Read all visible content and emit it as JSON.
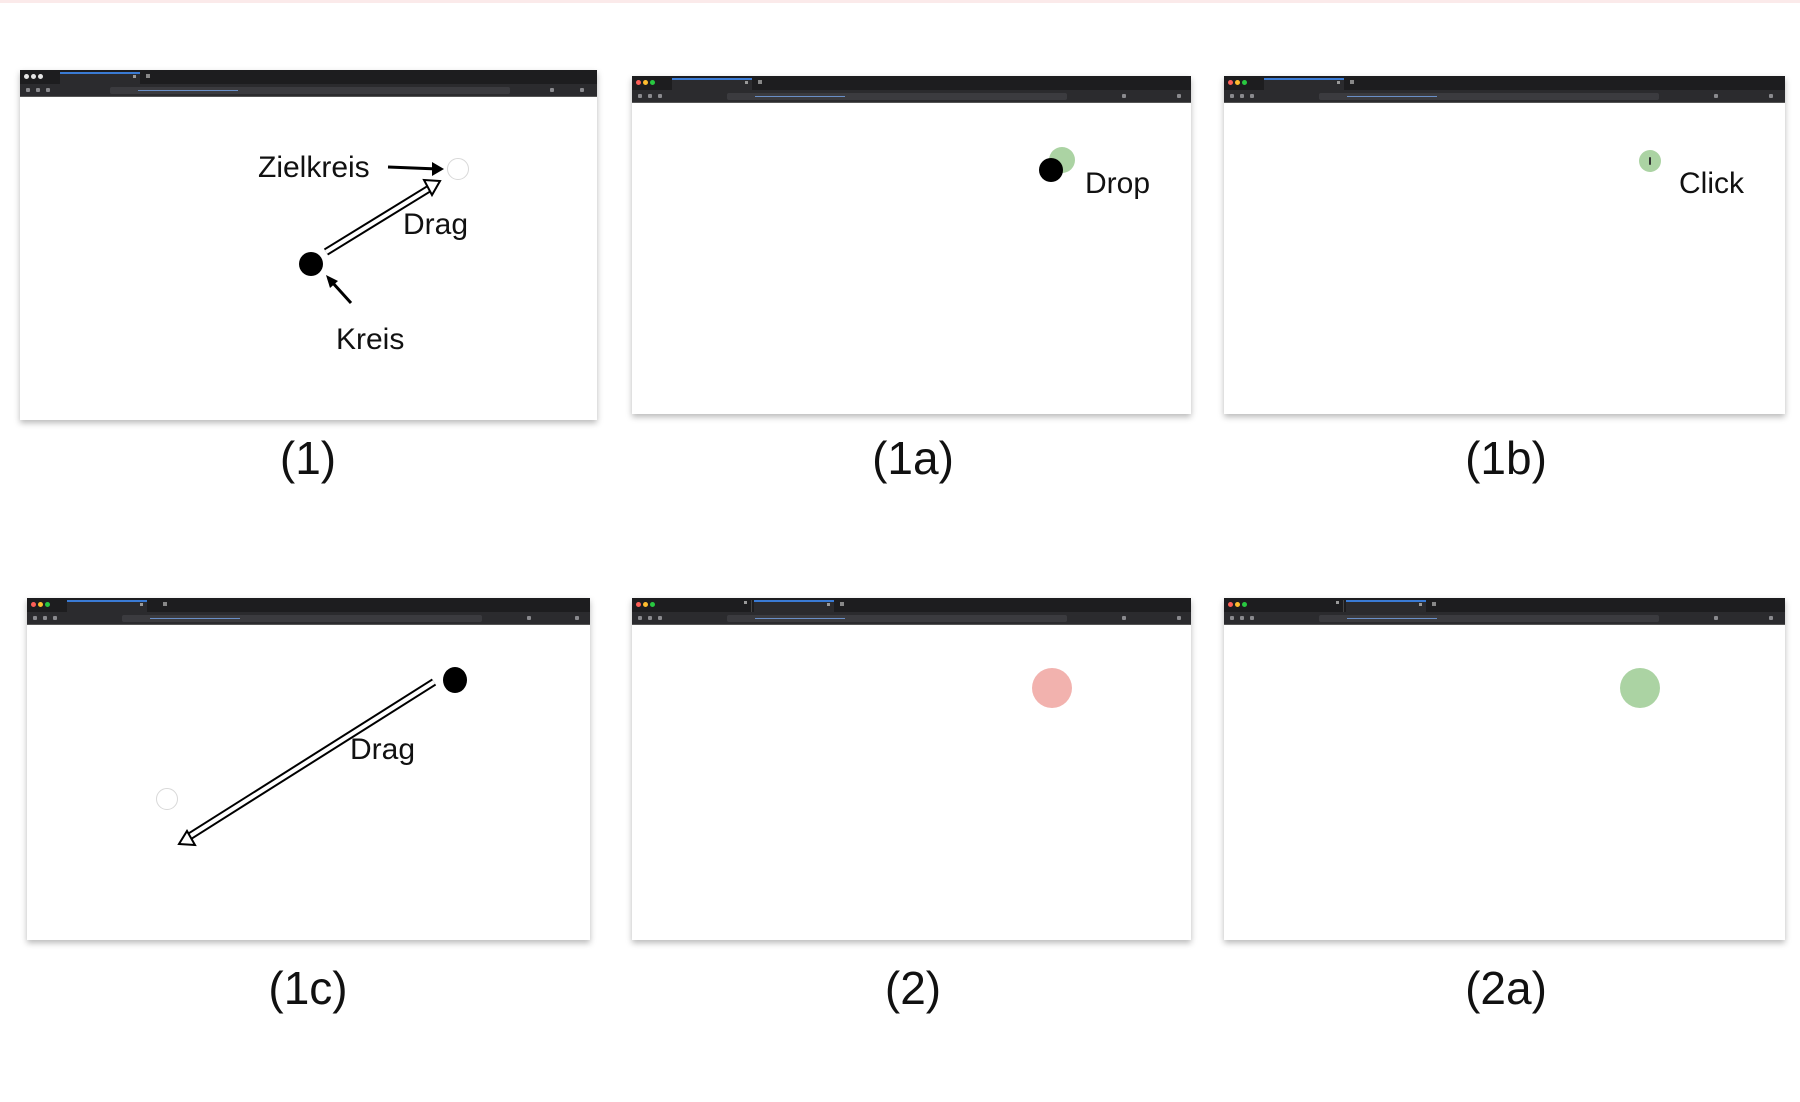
{
  "panels": {
    "p1": {
      "caption": "(1)",
      "labels": {
        "target": "Zielkreis",
        "drag": "Drag",
        "circle": "Kreis"
      }
    },
    "p1a": {
      "caption": "(1a)",
      "labels": {
        "drop": "Drop"
      }
    },
    "p1b": {
      "caption": "(1b)",
      "labels": {
        "click": "Click"
      }
    },
    "p1c": {
      "caption": "(1c)",
      "labels": {
        "drag": "Drag"
      }
    },
    "p2": {
      "caption": "(2)"
    },
    "p2a": {
      "caption": "(2a)"
    }
  },
  "icons": {
    "traffic_lights": [
      "close-dot-icon",
      "minimize-dot-icon",
      "zoom-dot-icon"
    ],
    "arrow": "arrow-icon",
    "drag_path": "drag-arrow-icon"
  },
  "colors": {
    "titlebar": "#1d1d1f",
    "toolbar": "#2b2b2e",
    "black_circle": "#000000",
    "green_circle": "#abd3a3",
    "red_circle": "#f2b2ae",
    "target_outline": "#d8d8d8"
  }
}
